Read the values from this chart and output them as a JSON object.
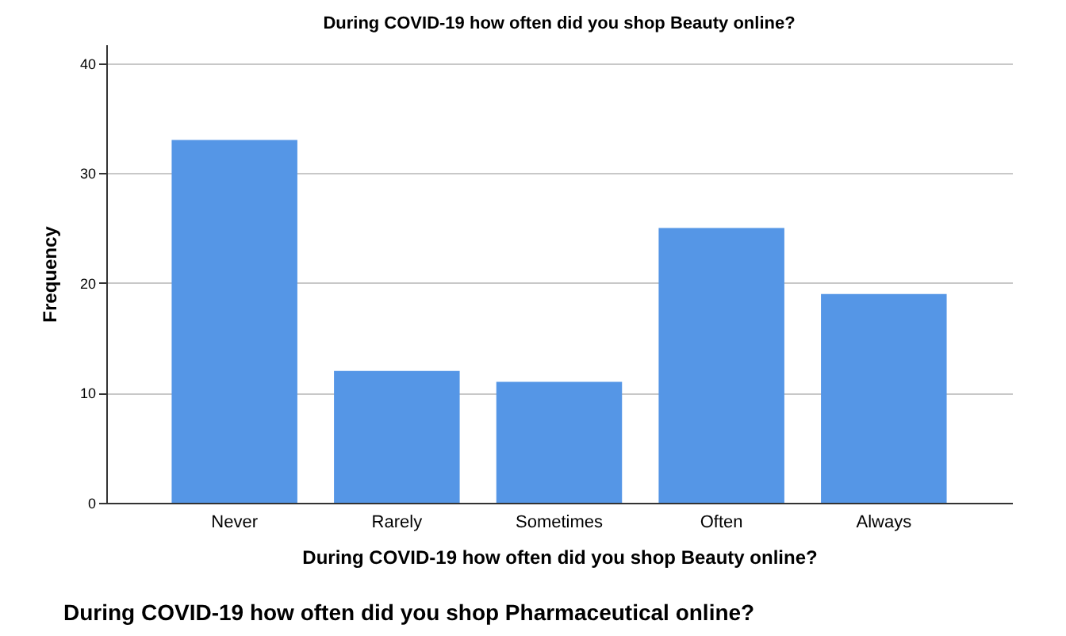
{
  "chart_data": {
    "type": "bar",
    "title": "During COVID-19 how often did you shop Beauty online?",
    "xlabel": "During COVID-19 how often did you shop Beauty online?",
    "ylabel": "Frequency",
    "categories": [
      "Never",
      "Rarely",
      "Sometimes",
      "Often",
      "Always"
    ],
    "values": [
      33,
      12,
      11,
      25,
      19
    ],
    "color": "#5596e6",
    "ylim": [
      0,
      41.7
    ],
    "yticks": [
      0,
      10,
      20,
      30,
      40
    ],
    "grid": "y",
    "annotations": [
      "During COVID-19 how often did you shop Pharmaceutical online?"
    ]
  }
}
